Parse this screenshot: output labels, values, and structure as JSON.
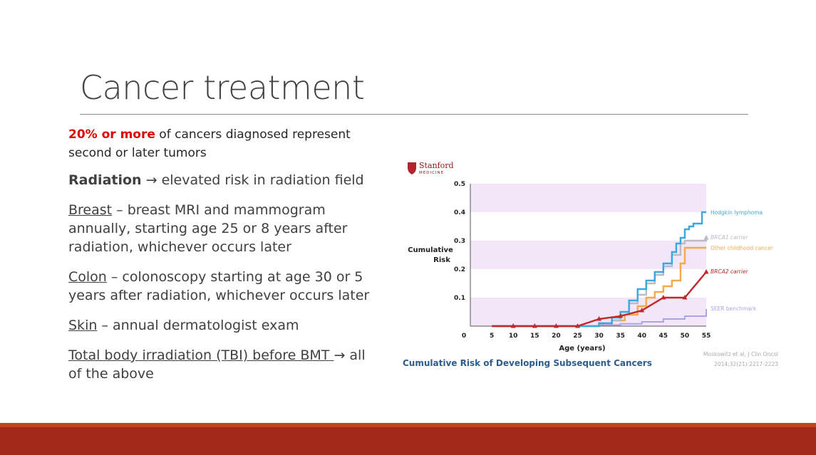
{
  "slide": {
    "title": "Cancer treatment",
    "intro_highlight": "20% or more",
    "intro_rest": " of cancers diagnosed represent second or later tumors",
    "radiation_label": "Radiation",
    "arrow": "→",
    "radiation_text": " elevated risk in radiation field",
    "breast_label": "Breast",
    "breast_text": " – breast MRI and mammogram annually, starting age 25 or 8 years after radiation, whichever occurs later",
    "colon_label": "Colon",
    "colon_text": " – colonoscopy starting at age 30 or 5 years after radiation, whichever occurs later",
    "skin_label": "Skin",
    "skin_text": " – annual dermatologist exam",
    "tbi_label": "Total body irradiation (TBI) before BMT ",
    "tbi_text": " all of the above"
  },
  "logo": {
    "name": "Stanford",
    "sub": "MEDICINE"
  },
  "chart_data": {
    "type": "line",
    "title": "Cumulative Risk of Developing Subsequent Cancers",
    "xlabel": "Age (years)",
    "ylabel": "Cumulative Risk",
    "x_ticks": [
      0,
      5,
      10,
      15,
      20,
      25,
      30,
      35,
      40,
      45,
      50,
      55
    ],
    "y_ticks": [
      0.1,
      0.2,
      0.3,
      0.4,
      0.5
    ],
    "xlim": [
      0,
      55
    ],
    "ylim": [
      0,
      0.5
    ],
    "citation_line1": "Moskowitz et al, J Clin Oncol",
    "citation_line2": "2014;32(21):2217-2223",
    "series": [
      {
        "name": "Hodgkin lymphoma",
        "color": "#3aa7e0",
        "x": [
          5,
          25,
          30,
          33,
          35,
          37,
          39,
          41,
          43,
          45,
          47,
          48,
          49,
          50,
          51,
          52,
          53,
          54,
          55
        ],
        "y": [
          0,
          0,
          0.01,
          0.03,
          0.05,
          0.09,
          0.13,
          0.16,
          0.19,
          0.22,
          0.26,
          0.29,
          0.31,
          0.34,
          0.35,
          0.36,
          0.36,
          0.4,
          0.4
        ]
      },
      {
        "name": "BRCA1 carrier",
        "color": "#b9bcc4",
        "x": [
          5,
          25,
          30,
          33,
          35,
          37,
          39,
          41,
          43,
          45,
          47,
          49,
          50,
          55
        ],
        "y": [
          0,
          0,
          0.01,
          0.02,
          0.04,
          0.08,
          0.11,
          0.15,
          0.18,
          0.21,
          0.25,
          0.29,
          0.3,
          0.31
        ]
      },
      {
        "name": "Other childhood cancer",
        "color": "#f2aa4c",
        "x": [
          5,
          25,
          30,
          33,
          36,
          39,
          41,
          43,
          45,
          47,
          49,
          50,
          55
        ],
        "y": [
          0,
          0,
          0.01,
          0.02,
          0.04,
          0.07,
          0.1,
          0.12,
          0.14,
          0.16,
          0.22,
          0.275,
          0.275
        ]
      },
      {
        "name": "BRCA2 carrier",
        "color": "#c1272d",
        "x": [
          5,
          10,
          15,
          20,
          25,
          30,
          35,
          40,
          45,
          50,
          55
        ],
        "y": [
          0,
          0,
          0,
          0,
          0,
          0.025,
          0.035,
          0.055,
          0.1,
          0.1,
          0.19
        ]
      },
      {
        "name": "SEER benchmark",
        "color": "#a9a6e0",
        "x": [
          5,
          25,
          30,
          35,
          40,
          45,
          50,
          55
        ],
        "y": [
          0,
          0,
          0.004,
          0.008,
          0.015,
          0.025,
          0.035,
          0.06
        ]
      }
    ]
  },
  "colors": {
    "band": "#f3e6f8",
    "title_color": "#404040",
    "highlight": "#e00000",
    "footer_light": "#c0451e",
    "footer_dark": "#a12a1d",
    "chart_title": "#2f5d8a"
  }
}
